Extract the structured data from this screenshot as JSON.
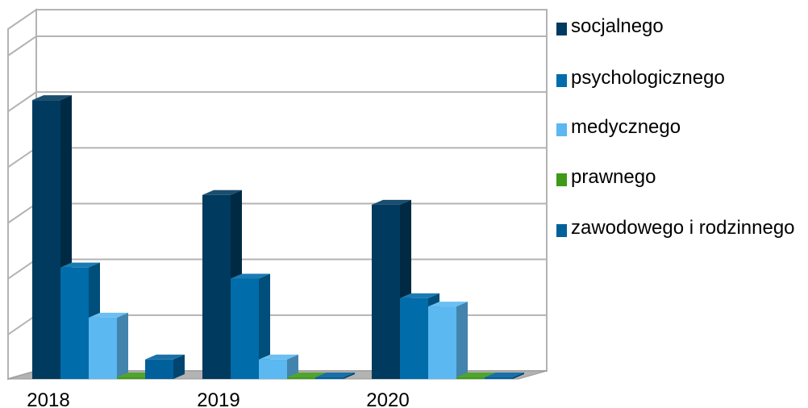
{
  "chart_data": {
    "type": "bar",
    "style": "3d-clustered",
    "categories": [
      "2018",
      "2019",
      "2020"
    ],
    "series": [
      {
        "name": "socjalnego",
        "values": [
          100,
          66,
          62.5
        ],
        "color": "#003A5E"
      },
      {
        "name": "psychologicznego",
        "values": [
          40,
          36,
          29
        ],
        "color": "#006CAA"
      },
      {
        "name": "medycznego",
        "values": [
          22,
          7,
          26
        ],
        "color": "#5BB8F0"
      },
      {
        "name": "prawnego",
        "values": [
          0.5,
          0.5,
          0.5
        ],
        "color": "#3E9A18"
      },
      {
        "name": "zawodowego i rodzinnego",
        "values": [
          7,
          0.5,
          0
        ],
        "color": "#00609C"
      }
    ],
    "ylim": [
      0,
      120
    ],
    "grid": true,
    "y_tick_labels_shown": false,
    "legend_position": "right"
  }
}
